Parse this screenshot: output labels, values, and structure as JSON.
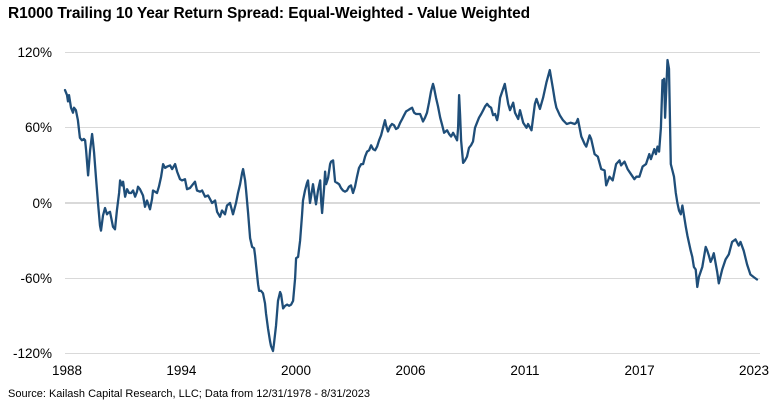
{
  "title": "R1000 Trailing 10 Year Return Spread: Equal-Weighted - Value Weighted",
  "source": "Source: Kailash Capital Research, LLC; Data from 12/31/1978 - 8/31/2023",
  "colors": {
    "line": "#1F4E79",
    "gridline": "#D9D9D9",
    "text": "#000000",
    "background": "#FFFFFF"
  },
  "chart_data": {
    "type": "line",
    "title": "R1000 Trailing 10 Year Return Spread: Equal-Weighted - Value Weighted",
    "unit": "%",
    "grid": "horizontal",
    "legend": "none",
    "ylim": [
      -120,
      120
    ],
    "y_ticks": [
      {
        "label": "120%",
        "value": 120
      },
      {
        "label": "60%",
        "value": 60
      },
      {
        "label": "0%",
        "value": 0
      },
      {
        "label": "-60%",
        "value": -60
      },
      {
        "label": "-120%",
        "value": -120
      }
    ],
    "x_range": [
      1988.86,
      2023.78
    ],
    "x_ticks": [
      {
        "label": "1988",
        "year": 1988.96
      },
      {
        "label": "1994",
        "year": 1994.71
      },
      {
        "label": "2000",
        "year": 2000.47
      },
      {
        "label": "2006",
        "year": 2006.22
      },
      {
        "label": "2011",
        "year": 2011.97
      },
      {
        "label": "2017",
        "year": 2017.73
      },
      {
        "label": "2023",
        "year": 2023.48
      }
    ],
    "points": [
      [
        1988.86,
        90
      ],
      [
        1988.96,
        86
      ],
      [
        1989.01,
        81
      ],
      [
        1989.06,
        86
      ],
      [
        1989.16,
        76
      ],
      [
        1989.26,
        72
      ],
      [
        1989.31,
        76
      ],
      [
        1989.41,
        74
      ],
      [
        1989.51,
        66
      ],
      [
        1989.61,
        52
      ],
      [
        1989.71,
        50
      ],
      [
        1989.81,
        51
      ],
      [
        1989.87,
        50
      ],
      [
        1989.92,
        42
      ],
      [
        1990.02,
        22
      ],
      [
        1990.07,
        32
      ],
      [
        1990.12,
        42
      ],
      [
        1990.22,
        55
      ],
      [
        1990.27,
        48
      ],
      [
        1990.32,
        40
      ],
      [
        1990.42,
        20
      ],
      [
        1990.52,
        0
      ],
      [
        1990.62,
        -18
      ],
      [
        1990.67,
        -22
      ],
      [
        1990.77,
        -10
      ],
      [
        1990.87,
        -4
      ],
      [
        1990.97,
        -9
      ],
      [
        1991.02,
        -8
      ],
      [
        1991.12,
        -7
      ],
      [
        1991.27,
        -19
      ],
      [
        1991.37,
        -21
      ],
      [
        1991.47,
        -6
      ],
      [
        1991.58,
        8
      ],
      [
        1991.63,
        18
      ],
      [
        1991.73,
        14
      ],
      [
        1991.78,
        17
      ],
      [
        1991.88,
        5
      ],
      [
        1991.98,
        11
      ],
      [
        1992.08,
        8
      ],
      [
        1992.18,
        8
      ],
      [
        1992.28,
        10
      ],
      [
        1992.38,
        5
      ],
      [
        1992.48,
        9
      ],
      [
        1992.53,
        13
      ],
      [
        1992.63,
        11
      ],
      [
        1992.78,
        6
      ],
      [
        1992.88,
        -3
      ],
      [
        1992.98,
        2
      ],
      [
        1993.13,
        -5
      ],
      [
        1993.23,
        3
      ],
      [
        1993.28,
        10
      ],
      [
        1993.38,
        9
      ],
      [
        1993.48,
        8
      ],
      [
        1993.58,
        13
      ],
      [
        1993.69,
        21
      ],
      [
        1993.79,
        31
      ],
      [
        1993.89,
        28
      ],
      [
        1993.99,
        29
      ],
      [
        1994.14,
        30
      ],
      [
        1994.24,
        27
      ],
      [
        1994.39,
        31
      ],
      [
        1994.49,
        25
      ],
      [
        1994.64,
        19
      ],
      [
        1994.74,
        18
      ],
      [
        1994.89,
        19
      ],
      [
        1994.99,
        11
      ],
      [
        1995.14,
        12
      ],
      [
        1995.29,
        15
      ],
      [
        1995.39,
        17
      ],
      [
        1995.49,
        10
      ],
      [
        1995.65,
        9
      ],
      [
        1995.75,
        10
      ],
      [
        1995.9,
        5
      ],
      [
        1996.05,
        6
      ],
      [
        1996.15,
        3
      ],
      [
        1996.25,
        0
      ],
      [
        1996.4,
        2
      ],
      [
        1996.5,
        -7
      ],
      [
        1996.65,
        -11
      ],
      [
        1996.75,
        -6
      ],
      [
        1996.9,
        -9
      ],
      [
        1997.0,
        -2
      ],
      [
        1997.15,
        0
      ],
      [
        1997.25,
        -6
      ],
      [
        1997.3,
        -9
      ],
      [
        1997.45,
        0
      ],
      [
        1997.55,
        8
      ],
      [
        1997.66,
        15
      ],
      [
        1997.76,
        24
      ],
      [
        1997.81,
        27
      ],
      [
        1997.91,
        18
      ],
      [
        1997.96,
        10
      ],
      [
        1998.06,
        -8
      ],
      [
        1998.11,
        -18
      ],
      [
        1998.16,
        -28
      ],
      [
        1998.26,
        -35
      ],
      [
        1998.36,
        -36
      ],
      [
        1998.41,
        -42
      ],
      [
        1998.46,
        -50
      ],
      [
        1998.56,
        -65
      ],
      [
        1998.61,
        -70
      ],
      [
        1998.71,
        -70
      ],
      [
        1998.81,
        -72
      ],
      [
        1998.91,
        -80
      ],
      [
        1998.96,
        -88
      ],
      [
        1999.06,
        -100
      ],
      [
        1999.16,
        -110
      ],
      [
        1999.21,
        -114
      ],
      [
        1999.31,
        -118
      ],
      [
        1999.36,
        -112
      ],
      [
        1999.46,
        -98
      ],
      [
        1999.56,
        -78
      ],
      [
        1999.67,
        -71
      ],
      [
        1999.72,
        -73
      ],
      [
        1999.82,
        -84
      ],
      [
        1999.92,
        -82
      ],
      [
        2000.02,
        -81
      ],
      [
        2000.12,
        -82
      ],
      [
        2000.22,
        -81
      ],
      [
        2000.32,
        -78
      ],
      [
        2000.42,
        -60
      ],
      [
        2000.47,
        -44
      ],
      [
        2000.57,
        -43
      ],
      [
        2000.67,
        -30
      ],
      [
        2000.77,
        -10
      ],
      [
        2000.82,
        2
      ],
      [
        2000.92,
        10
      ],
      [
        2001.02,
        16
      ],
      [
        2001.07,
        18
      ],
      [
        2001.17,
        0
      ],
      [
        2001.22,
        5
      ],
      [
        2001.32,
        15
      ],
      [
        2001.42,
        4
      ],
      [
        2001.47,
        -1
      ],
      [
        2001.57,
        10
      ],
      [
        2001.68,
        18
      ],
      [
        2001.73,
        2
      ],
      [
        2001.78,
        -8
      ],
      [
        2001.88,
        12
      ],
      [
        2001.93,
        25
      ],
      [
        2001.98,
        15
      ],
      [
        2002.08,
        20
      ],
      [
        2002.18,
        31
      ],
      [
        2002.23,
        33
      ],
      [
        2002.33,
        34
      ],
      [
        2002.43,
        17
      ],
      [
        2002.53,
        16
      ],
      [
        2002.63,
        15
      ],
      [
        2002.73,
        12
      ],
      [
        2002.83,
        10
      ],
      [
        2002.93,
        9
      ],
      [
        2003.03,
        10
      ],
      [
        2003.13,
        13
      ],
      [
        2003.23,
        14
      ],
      [
        2003.33,
        8
      ],
      [
        2003.43,
        13
      ],
      [
        2003.53,
        21
      ],
      [
        2003.63,
        28
      ],
      [
        2003.74,
        31
      ],
      [
        2003.84,
        31
      ],
      [
        2003.94,
        37
      ],
      [
        2004.04,
        41
      ],
      [
        2004.14,
        42
      ],
      [
        2004.24,
        46
      ],
      [
        2004.34,
        43
      ],
      [
        2004.44,
        42
      ],
      [
        2004.54,
        45
      ],
      [
        2004.64,
        50
      ],
      [
        2004.74,
        54
      ],
      [
        2004.84,
        60
      ],
      [
        2004.94,
        66
      ],
      [
        2004.99,
        62
      ],
      [
        2005.09,
        57
      ],
      [
        2005.19,
        61
      ],
      [
        2005.29,
        63
      ],
      [
        2005.39,
        62
      ],
      [
        2005.49,
        59
      ],
      [
        2005.59,
        60
      ],
      [
        2005.7,
        64
      ],
      [
        2005.8,
        67
      ],
      [
        2005.9,
        70
      ],
      [
        2006.0,
        73
      ],
      [
        2006.1,
        74
      ],
      [
        2006.2,
        75
      ],
      [
        2006.3,
        76
      ],
      [
        2006.4,
        72
      ],
      [
        2006.5,
        71
      ],
      [
        2006.6,
        71
      ],
      [
        2006.7,
        71
      ],
      [
        2006.8,
        67
      ],
      [
        2006.85,
        65
      ],
      [
        2006.95,
        68
      ],
      [
        2007.05,
        72
      ],
      [
        2007.15,
        80
      ],
      [
        2007.25,
        89
      ],
      [
        2007.35,
        95
      ],
      [
        2007.4,
        92
      ],
      [
        2007.5,
        84
      ],
      [
        2007.6,
        77
      ],
      [
        2007.71,
        68
      ],
      [
        2007.81,
        62
      ],
      [
        2007.91,
        56
      ],
      [
        2008.06,
        58
      ],
      [
        2008.16,
        55
      ],
      [
        2008.26,
        53
      ],
      [
        2008.36,
        56
      ],
      [
        2008.46,
        53
      ],
      [
        2008.56,
        50
      ],
      [
        2008.61,
        60
      ],
      [
        2008.66,
        86
      ],
      [
        2008.71,
        70
      ],
      [
        2008.76,
        50
      ],
      [
        2008.86,
        32
      ],
      [
        2008.96,
        34
      ],
      [
        2009.06,
        37
      ],
      [
        2009.16,
        44
      ],
      [
        2009.26,
        46
      ],
      [
        2009.36,
        49
      ],
      [
        2009.46,
        60
      ],
      [
        2009.56,
        64
      ],
      [
        2009.66,
        68
      ],
      [
        2009.77,
        71
      ],
      [
        2009.87,
        74
      ],
      [
        2009.97,
        77
      ],
      [
        2010.07,
        79
      ],
      [
        2010.17,
        77
      ],
      [
        2010.27,
        76
      ],
      [
        2010.37,
        70
      ],
      [
        2010.47,
        71
      ],
      [
        2010.57,
        66
      ],
      [
        2010.62,
        70
      ],
      [
        2010.72,
        84
      ],
      [
        2010.87,
        91
      ],
      [
        2010.96,
        95
      ],
      [
        2011.13,
        79
      ],
      [
        2011.22,
        74
      ],
      [
        2011.38,
        80
      ],
      [
        2011.47,
        72
      ],
      [
        2011.63,
        67
      ],
      [
        2011.72,
        74
      ],
      [
        2011.88,
        64
      ],
      [
        2012.05,
        60
      ],
      [
        2012.13,
        63
      ],
      [
        2012.3,
        58
      ],
      [
        2012.47,
        79
      ],
      [
        2012.55,
        83
      ],
      [
        2012.72,
        75
      ],
      [
        2012.88,
        84
      ],
      [
        2013.05,
        96
      ],
      [
        2013.22,
        106
      ],
      [
        2013.38,
        91
      ],
      [
        2013.47,
        82
      ],
      [
        2013.55,
        76
      ],
      [
        2013.72,
        70
      ],
      [
        2013.88,
        66
      ],
      [
        2014.07,
        63
      ],
      [
        2014.27,
        64
      ],
      [
        2014.47,
        63
      ],
      [
        2014.55,
        64
      ],
      [
        2014.63,
        67
      ],
      [
        2014.8,
        53
      ],
      [
        2014.97,
        47
      ],
      [
        2015.05,
        45
      ],
      [
        2015.22,
        54
      ],
      [
        2015.3,
        51
      ],
      [
        2015.47,
        39
      ],
      [
        2015.63,
        37
      ],
      [
        2015.8,
        27
      ],
      [
        2015.97,
        26
      ],
      [
        2016.05,
        14
      ],
      [
        2016.22,
        21
      ],
      [
        2016.38,
        18
      ],
      [
        2016.55,
        31
      ],
      [
        2016.72,
        34
      ],
      [
        2016.8,
        30
      ],
      [
        2016.97,
        33
      ],
      [
        2017.13,
        27
      ],
      [
        2017.3,
        23
      ],
      [
        2017.47,
        19
      ],
      [
        2017.57,
        21
      ],
      [
        2017.72,
        21
      ],
      [
        2017.88,
        29
      ],
      [
        2018.05,
        31
      ],
      [
        2018.22,
        39
      ],
      [
        2018.3,
        35
      ],
      [
        2018.47,
        43
      ],
      [
        2018.55,
        39
      ],
      [
        2018.63,
        45
      ],
      [
        2018.71,
        41
      ],
      [
        2018.8,
        60
      ],
      [
        2018.88,
        98
      ],
      [
        2018.93,
        90
      ],
      [
        2018.96,
        99
      ],
      [
        2019.01,
        68
      ],
      [
        2019.08,
        95
      ],
      [
        2019.13,
        114
      ],
      [
        2019.21,
        107
      ],
      [
        2019.3,
        31
      ],
      [
        2019.38,
        26
      ],
      [
        2019.46,
        21
      ],
      [
        2019.55,
        8
      ],
      [
        2019.63,
        0
      ],
      [
        2019.71,
        -6
      ],
      [
        2019.8,
        -9
      ],
      [
        2019.88,
        -2
      ],
      [
        2020.05,
        -19
      ],
      [
        2020.13,
        -26
      ],
      [
        2020.3,
        -38
      ],
      [
        2020.38,
        -43
      ],
      [
        2020.46,
        -51
      ],
      [
        2020.55,
        -53
      ],
      [
        2020.63,
        -67
      ],
      [
        2020.71,
        -59
      ],
      [
        2020.88,
        -51
      ],
      [
        2021.05,
        -35
      ],
      [
        2021.13,
        -38
      ],
      [
        2021.21,
        -42
      ],
      [
        2021.3,
        -47
      ],
      [
        2021.38,
        -44
      ],
      [
        2021.46,
        -40
      ],
      [
        2021.63,
        -55
      ],
      [
        2021.71,
        -64
      ],
      [
        2021.88,
        -53
      ],
      [
        2022.05,
        -45
      ],
      [
        2022.21,
        -41
      ],
      [
        2022.38,
        -31
      ],
      [
        2022.55,
        -29
      ],
      [
        2022.71,
        -34
      ],
      [
        2022.8,
        -31
      ],
      [
        2022.96,
        -38
      ],
      [
        2023.13,
        -49
      ],
      [
        2023.3,
        -57
      ],
      [
        2023.46,
        -59
      ],
      [
        2023.63,
        -61
      ]
    ]
  }
}
